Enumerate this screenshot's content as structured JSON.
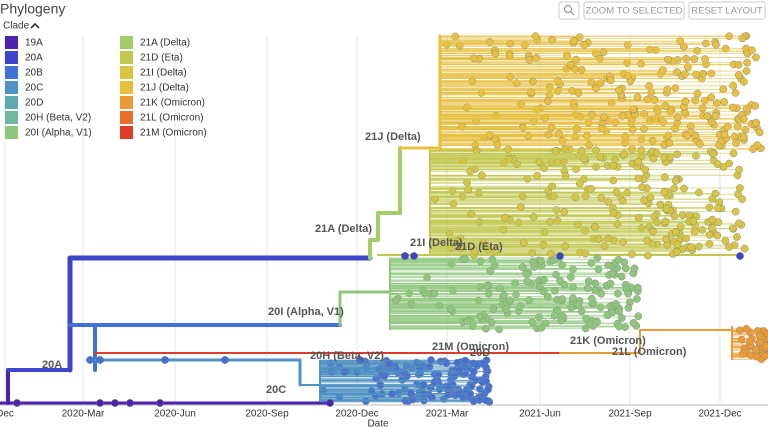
{
  "header": {
    "title": "Phylogeny",
    "buttons": [
      "ZOOM TO SELECTED",
      "RESET LAYOUT"
    ]
  },
  "legend": {
    "title": "Clade",
    "items": [
      {
        "name": "19A",
        "color": "#4a24b0"
      },
      {
        "name": "20A",
        "color": "#3e45c8"
      },
      {
        "name": "20B",
        "color": "#4272d6"
      },
      {
        "name": "20C",
        "color": "#4f93c4"
      },
      {
        "name": "20D",
        "color": "#5fa9b4"
      },
      {
        "name": "20H (Beta, V2)",
        "color": "#6cb8a0"
      },
      {
        "name": "20I (Alpha, V1)",
        "color": "#8ec77c"
      },
      {
        "name": "21A (Delta)",
        "color": "#a4cd6a"
      },
      {
        "name": "21D (Eta)",
        "color": "#c2c84e"
      },
      {
        "name": "21I (Delta)",
        "color": "#d9c540"
      },
      {
        "name": "21J (Delta)",
        "color": "#e8c03e"
      },
      {
        "name": "21K (Omicron)",
        "color": "#ec9a33"
      },
      {
        "name": "21L (Omicron)",
        "color": "#e8702c"
      },
      {
        "name": "21M (Omicron)",
        "color": "#df3b26"
      }
    ]
  },
  "tree": {
    "branch_labels": [
      "21J (Delta)",
      "21A (Delta)",
      "21I (Delta)",
      "21D (Eta)",
      "20I (Alpha, V1)",
      "20A",
      "20H (Beta, V2)",
      "21M (Omicron)",
      "20D",
      "21K (Omicron)",
      "21L (Omicron)",
      "20C"
    ]
  },
  "axis": {
    "ticks": [
      "Dec",
      "2020-Mar",
      "2020-Jun",
      "2020-Sep",
      "2020-Dec",
      "2021-Mar",
      "2021-Jun",
      "2021-Sep",
      "2021-Dec"
    ],
    "title": "Date"
  }
}
